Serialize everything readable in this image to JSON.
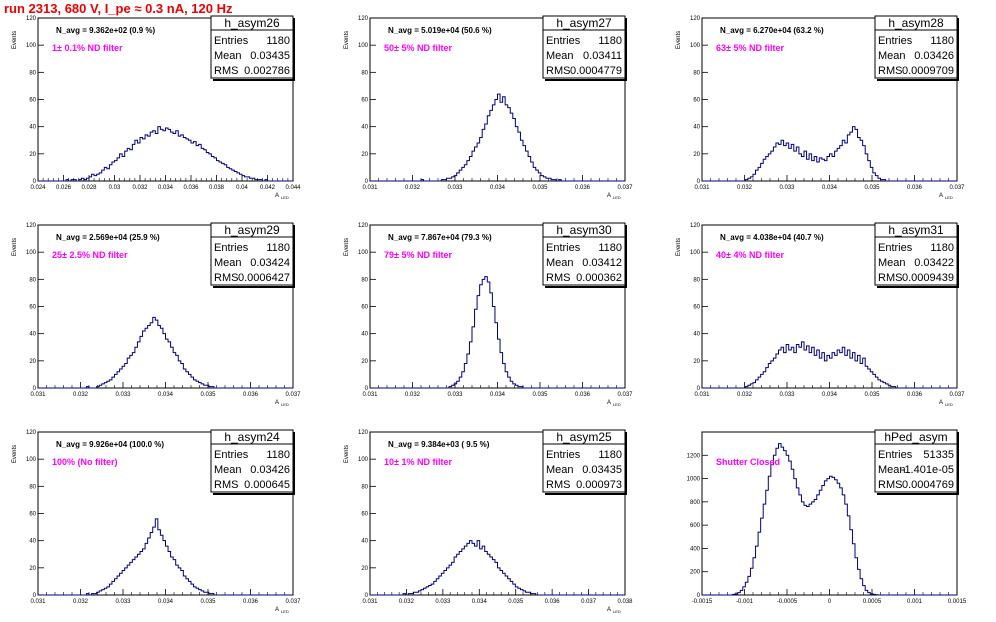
{
  "title": "run 2313,   680 V, I_pe ≈ 0.3 nA, 120 Hz",
  "chart_data": [
    {
      "type": "bar",
      "name": "h_asym26",
      "navg": "N_avg = 9.362e+02 (0.9 %)",
      "annotation": "1± 0.1% ND filter",
      "stats": {
        "entries": "1180",
        "mean": "0.03435",
        "rms": "0.002786"
      },
      "xlabel": "A_LED",
      "ylabel": "Events",
      "xlim": [
        0.024,
        0.044
      ],
      "ylim": [
        0,
        120
      ],
      "xticks": [
        "0.024",
        "0.026",
        "0.028",
        "0.03",
        "0.032",
        "0.034",
        "0.036",
        "0.038",
        "0.04",
        "0.042",
        "0.044"
      ],
      "xtick_values": [
        0.024,
        0.026,
        0.028,
        0.03,
        0.032,
        0.034,
        0.036,
        0.038,
        0.04,
        0.042,
        0.044
      ],
      "yticks": [
        0,
        20,
        40,
        60,
        80,
        100,
        120
      ],
      "bins_start": 0.024,
      "bin_width": 0.0002,
      "values": [
        0,
        0,
        0,
        0,
        0,
        0,
        0,
        0,
        0,
        0,
        0,
        1,
        0,
        1,
        1,
        0,
        1,
        2,
        1,
        2,
        3,
        5,
        4,
        5,
        6,
        8,
        10,
        9,
        12,
        14,
        15,
        17,
        20,
        18,
        22,
        24,
        23,
        27,
        30,
        28,
        32,
        31,
        34,
        33,
        36,
        37,
        35,
        40,
        38,
        37,
        39,
        38,
        36,
        35,
        37,
        33,
        34,
        32,
        31,
        30,
        28,
        29,
        26,
        27,
        24,
        23,
        21,
        20,
        18,
        17,
        15,
        14,
        13,
        12,
        10,
        9,
        8,
        7,
        6,
        5,
        4,
        3,
        3,
        2,
        2,
        1,
        1,
        1,
        0,
        1,
        0,
        0,
        0,
        0,
        0,
        0,
        0,
        0,
        0,
        0
      ]
    },
    {
      "type": "bar",
      "name": "h_asym27",
      "navg": "N_avg = 5.019e+04 (50.6 %)",
      "annotation": "50± 5% ND filter",
      "stats": {
        "entries": "1180",
        "mean": "0.03411",
        "rms": "0.0004779"
      },
      "xlabel": "A_LED",
      "ylabel": "Events",
      "xlim": [
        0.031,
        0.037
      ],
      "ylim": [
        0,
        120
      ],
      "xticks": [
        "0.031",
        "0.032",
        "0.033",
        "0.034",
        "0.035",
        "0.036",
        "0.037"
      ],
      "xtick_values": [
        0.031,
        0.032,
        0.033,
        0.034,
        0.035,
        0.036,
        0.037
      ],
      "yticks": [
        0,
        20,
        40,
        60,
        80,
        100,
        120
      ],
      "bins_start": 0.031,
      "bin_width": 6e-05,
      "values": [
        0,
        0,
        0,
        0,
        0,
        0,
        0,
        0,
        0,
        0,
        0,
        0,
        0,
        0,
        0,
        0,
        0,
        0,
        0,
        0,
        1,
        0,
        0,
        0,
        0,
        0,
        0,
        0,
        1,
        1,
        2,
        2,
        3,
        4,
        6,
        8,
        10,
        12,
        15,
        18,
        22,
        25,
        28,
        32,
        38,
        42,
        48,
        52,
        56,
        60,
        64,
        58,
        62,
        56,
        54,
        50,
        46,
        40,
        36,
        30,
        26,
        22,
        18,
        14,
        10,
        8,
        6,
        4,
        3,
        2,
        2,
        1,
        1,
        0,
        1,
        0,
        0,
        0,
        0,
        0,
        0,
        0,
        0,
        0,
        0,
        0,
        0,
        0,
        0,
        0,
        0,
        0,
        0,
        0,
        0,
        0,
        0,
        0,
        0,
        0
      ]
    },
    {
      "type": "bar",
      "name": "h_asym28",
      "navg": "N_avg = 6.270e+04 (63.2 %)",
      "annotation": "63± 5% ND filter",
      "stats": {
        "entries": "1180",
        "mean": "0.03426",
        "rms": "0.0009709"
      },
      "xlabel": "A_LED",
      "ylabel": "Events",
      "xlim": [
        0.031,
        0.037
      ],
      "ylim": [
        0,
        120
      ],
      "xticks": [
        "0.031",
        "0.032",
        "0.033",
        "0.034",
        "0.035",
        "0.036",
        "0.037"
      ],
      "xtick_values": [
        0.031,
        0.032,
        0.033,
        0.034,
        0.035,
        0.036,
        0.037
      ],
      "yticks": [
        0,
        20,
        40,
        60,
        80,
        100,
        120
      ],
      "bins_start": 0.031,
      "bin_width": 6e-05,
      "values": [
        0,
        0,
        0,
        0,
        0,
        0,
        0,
        0,
        0,
        0,
        0,
        0,
        0,
        0,
        0,
        0,
        0,
        1,
        2,
        3,
        5,
        8,
        10,
        13,
        16,
        18,
        20,
        22,
        25,
        28,
        27,
        30,
        26,
        28,
        24,
        27,
        22,
        25,
        20,
        18,
        22,
        16,
        20,
        15,
        18,
        14,
        17,
        16,
        15,
        18,
        20,
        18,
        22,
        24,
        26,
        30,
        28,
        34,
        36,
        40,
        38,
        32,
        30,
        26,
        20,
        15,
        10,
        6,
        4,
        2,
        1,
        1,
        0,
        0,
        0,
        0,
        0,
        0,
        0,
        0,
        0,
        0,
        0,
        0,
        0,
        0,
        0,
        0,
        0,
        0,
        0,
        0,
        0,
        0,
        0,
        0,
        0,
        0,
        0,
        0
      ]
    },
    {
      "type": "bar",
      "name": "h_asym29",
      "navg": "N_avg = 2.569e+04 (25.9 %)",
      "annotation": "25± 2.5% ND filter",
      "stats": {
        "entries": "1180",
        "mean": "0.03424",
        "rms": "0.0006427"
      },
      "xlabel": "A_LED",
      "ylabel": "Events",
      "xlim": [
        0.031,
        0.037
      ],
      "ylim": [
        0,
        120
      ],
      "xticks": [
        "0.031",
        "0.032",
        "0.033",
        "0.034",
        "0.035",
        "0.036",
        "0.037"
      ],
      "xtick_values": [
        0.031,
        0.032,
        0.033,
        0.034,
        0.035,
        0.036,
        0.037
      ],
      "yticks": [
        0,
        20,
        40,
        60,
        80,
        100,
        120
      ],
      "bins_start": 0.031,
      "bin_width": 6e-05,
      "values": [
        0,
        0,
        0,
        0,
        0,
        0,
        0,
        0,
        0,
        0,
        0,
        0,
        0,
        0,
        0,
        0,
        0,
        0,
        0,
        1,
        0,
        0,
        0,
        1,
        2,
        3,
        4,
        5,
        6,
        8,
        10,
        12,
        14,
        16,
        18,
        22,
        24,
        26,
        30,
        34,
        38,
        42,
        44,
        46,
        48,
        52,
        50,
        46,
        44,
        40,
        36,
        34,
        30,
        26,
        24,
        20,
        18,
        14,
        12,
        10,
        8,
        6,
        5,
        4,
        3,
        2,
        2,
        1,
        1,
        0,
        0,
        0,
        0,
        0,
        0,
        0,
        0,
        0,
        0,
        0,
        0,
        0,
        0,
        0,
        0,
        0,
        0,
        0,
        0,
        0,
        0,
        0,
        0,
        0,
        0,
        0,
        0,
        0,
        0,
        0
      ]
    },
    {
      "type": "bar",
      "name": "h_asym30",
      "navg": "N_avg = 7.867e+04 (79.3 %)",
      "annotation": "79± 5% ND filter",
      "stats": {
        "entries": "1180",
        "mean": "0.03412",
        "rms": "0.000362"
      },
      "xlabel": "A_LED",
      "ylabel": "Events",
      "xlim": [
        0.031,
        0.037
      ],
      "ylim": [
        0,
        120
      ],
      "xticks": [
        "0.031",
        "0.032",
        "0.033",
        "0.034",
        "0.035",
        "0.036",
        "0.037"
      ],
      "xtick_values": [
        0.031,
        0.032,
        0.033,
        0.034,
        0.035,
        0.036,
        0.037
      ],
      "yticks": [
        0,
        20,
        40,
        60,
        80,
        100,
        120
      ],
      "bins_start": 0.031,
      "bin_width": 6e-05,
      "values": [
        0,
        0,
        0,
        0,
        0,
        0,
        0,
        0,
        0,
        0,
        0,
        0,
        0,
        0,
        0,
        0,
        0,
        0,
        0,
        0,
        0,
        0,
        0,
        0,
        0,
        0,
        0,
        0,
        0,
        0,
        0,
        1,
        2,
        3,
        5,
        8,
        12,
        18,
        25,
        34,
        45,
        58,
        68,
        76,
        80,
        82,
        78,
        70,
        60,
        48,
        36,
        26,
        18,
        12,
        8,
        5,
        3,
        2,
        1,
        1,
        0,
        0,
        0,
        0,
        0,
        0,
        0,
        0,
        0,
        0,
        0,
        0,
        0,
        0,
        0,
        0,
        0,
        0,
        0,
        0,
        0,
        0,
        0,
        0,
        0,
        0,
        0,
        0,
        0,
        0,
        0,
        0,
        0,
        0,
        0,
        0,
        0,
        0,
        0,
        0
      ]
    },
    {
      "type": "bar",
      "name": "h_asym31",
      "navg": "N_avg = 4.038e+04 (40.7 %)",
      "annotation": "40± 4% ND filter",
      "stats": {
        "entries": "1180",
        "mean": "0.03422",
        "rms": "0.0009439"
      },
      "xlabel": "A_LED",
      "ylabel": "Events",
      "xlim": [
        0.031,
        0.037
      ],
      "ylim": [
        0,
        120
      ],
      "xticks": [
        "0.031",
        "0.032",
        "0.033",
        "0.034",
        "0.035",
        "0.036",
        "0.037"
      ],
      "xtick_values": [
        0.031,
        0.032,
        0.033,
        0.034,
        0.035,
        0.036,
        0.037
      ],
      "yticks": [
        0,
        20,
        40,
        60,
        80,
        100,
        120
      ],
      "bins_start": 0.031,
      "bin_width": 6e-05,
      "values": [
        0,
        0,
        0,
        0,
        0,
        0,
        0,
        0,
        0,
        0,
        0,
        0,
        0,
        0,
        0,
        0,
        0,
        1,
        2,
        3,
        4,
        6,
        8,
        10,
        12,
        15,
        18,
        20,
        22,
        25,
        28,
        30,
        26,
        32,
        28,
        30,
        26,
        32,
        30,
        34,
        28,
        31,
        26,
        30,
        24,
        28,
        22,
        26,
        20,
        24,
        22,
        26,
        24,
        28,
        26,
        30,
        24,
        28,
        22,
        26,
        20,
        24,
        18,
        22,
        16,
        14,
        12,
        10,
        8,
        6,
        5,
        4,
        3,
        2,
        1,
        1,
        0,
        0,
        0,
        0,
        0,
        0,
        0,
        0,
        0,
        0,
        0,
        0,
        0,
        0,
        0,
        0,
        0,
        0,
        0,
        0,
        0,
        0,
        0,
        0
      ]
    },
    {
      "type": "bar",
      "name": "h_asym24",
      "navg": "N_avg = 9.926e+04 (100.0 %)",
      "annotation": "100% (No filter)",
      "stats": {
        "entries": "1180",
        "mean": "0.03426",
        "rms": "0.000645"
      },
      "xlabel": "A_LED",
      "ylabel": "Events",
      "xlim": [
        0.031,
        0.037
      ],
      "ylim": [
        0,
        120
      ],
      "xticks": [
        "0.031",
        "0.032",
        "0.033",
        "0.034",
        "0.035",
        "0.036",
        "0.037"
      ],
      "xtick_values": [
        0.031,
        0.032,
        0.033,
        0.034,
        0.035,
        0.036,
        0.037
      ],
      "yticks": [
        0,
        20,
        40,
        60,
        80,
        100,
        120
      ],
      "bins_start": 0.031,
      "bin_width": 6e-05,
      "values": [
        0,
        0,
        0,
        0,
        0,
        0,
        0,
        0,
        0,
        0,
        0,
        0,
        0,
        0,
        0,
        0,
        0,
        0,
        0,
        1,
        0,
        1,
        1,
        2,
        3,
        4,
        5,
        6,
        8,
        10,
        12,
        14,
        16,
        18,
        20,
        22,
        24,
        26,
        28,
        30,
        32,
        34,
        38,
        42,
        46,
        50,
        56,
        48,
        44,
        40,
        36,
        32,
        28,
        26,
        22,
        20,
        18,
        14,
        12,
        10,
        8,
        6,
        5,
        4,
        3,
        2,
        2,
        1,
        1,
        0,
        0,
        0,
        0,
        0,
        0,
        0,
        0,
        0,
        0,
        0,
        0,
        0,
        0,
        0,
        0,
        0,
        0,
        0,
        0,
        0,
        0,
        0,
        0,
        0,
        0,
        0,
        0,
        0,
        0,
        0
      ]
    },
    {
      "type": "bar",
      "name": "h_asym25",
      "navg": "N_avg = 9.384e+03 ( 9.5 %)",
      "annotation": "10± 1% ND filter",
      "stats": {
        "entries": "1180",
        "mean": "0.03435",
        "rms": "0.000973"
      },
      "xlabel": "A_LED",
      "ylabel": "Events",
      "xlim": [
        0.031,
        0.038
      ],
      "ylim": [
        0,
        120
      ],
      "xticks": [
        "0.031",
        "0.032",
        "0.033",
        "0.034",
        "0.035",
        "0.036",
        "0.037",
        "0.038"
      ],
      "xtick_values": [
        0.031,
        0.032,
        0.033,
        0.034,
        0.035,
        0.036,
        0.037,
        0.038
      ],
      "yticks": [
        0,
        20,
        40,
        60,
        80,
        100,
        120
      ],
      "bins_start": 0.031,
      "bin_width": 7e-05,
      "values": [
        0,
        0,
        0,
        0,
        0,
        0,
        0,
        0,
        0,
        0,
        0,
        0,
        0,
        1,
        0,
        1,
        1,
        2,
        2,
        3,
        4,
        5,
        6,
        7,
        8,
        10,
        12,
        14,
        16,
        18,
        20,
        22,
        24,
        28,
        30,
        32,
        34,
        36,
        38,
        40,
        38,
        36,
        40,
        34,
        36,
        32,
        30,
        28,
        26,
        24,
        20,
        18,
        16,
        14,
        12,
        10,
        8,
        6,
        5,
        4,
        3,
        2,
        2,
        1,
        1,
        0,
        0,
        0,
        0,
        0,
        0,
        0,
        0,
        0,
        0,
        0,
        0,
        0,
        0,
        0,
        0,
        0,
        0,
        0,
        0,
        0,
        0,
        0,
        0,
        0,
        0,
        0,
        0,
        0,
        0,
        0,
        0,
        0,
        0,
        0
      ]
    },
    {
      "type": "bar",
      "name": "hPed_asym",
      "navg": "",
      "annotation": "Shutter Closed",
      "stats": {
        "entries": "51335",
        "mean": "-1.401e-05",
        "rms": "0.0004769"
      },
      "xlabel": "",
      "ylabel": "",
      "xlim": [
        -0.0015,
        0.0015
      ],
      "ylim": [
        0,
        1400
      ],
      "xticks": [
        "-0.0015",
        "-0.001",
        "-0.0005",
        "0",
        "0.0005",
        "0.001",
        "0.0015"
      ],
      "xtick_values": [
        -0.0015,
        -0.001,
        -0.0005,
        0,
        0.0005,
        0.001,
        0.0015
      ],
      "yticks": [
        0,
        200,
        400,
        600,
        800,
        1000,
        1200
      ],
      "bins_start": -0.0015,
      "bin_width": 3e-05,
      "values": [
        0,
        0,
        0,
        0,
        0,
        0,
        0,
        0,
        0,
        0,
        0,
        0,
        5,
        10,
        20,
        40,
        70,
        110,
        160,
        230,
        320,
        420,
        540,
        660,
        780,
        900,
        1020,
        1120,
        1200,
        1260,
        1300,
        1270,
        1240,
        1200,
        1150,
        1080,
        1000,
        920,
        860,
        800,
        770,
        760,
        780,
        800,
        820,
        860,
        900,
        940,
        980,
        1000,
        1020,
        1010,
        990,
        960,
        920,
        860,
        780,
        680,
        560,
        440,
        320,
        220,
        140,
        80,
        40,
        20,
        10,
        5,
        2,
        0,
        0,
        0,
        0,
        0,
        0,
        0,
        0,
        0,
        0,
        0,
        0,
        0,
        0,
        0,
        0,
        0,
        0,
        0,
        0,
        0,
        0,
        0,
        0,
        0,
        0,
        0,
        0,
        0,
        0,
        0
      ]
    }
  ]
}
